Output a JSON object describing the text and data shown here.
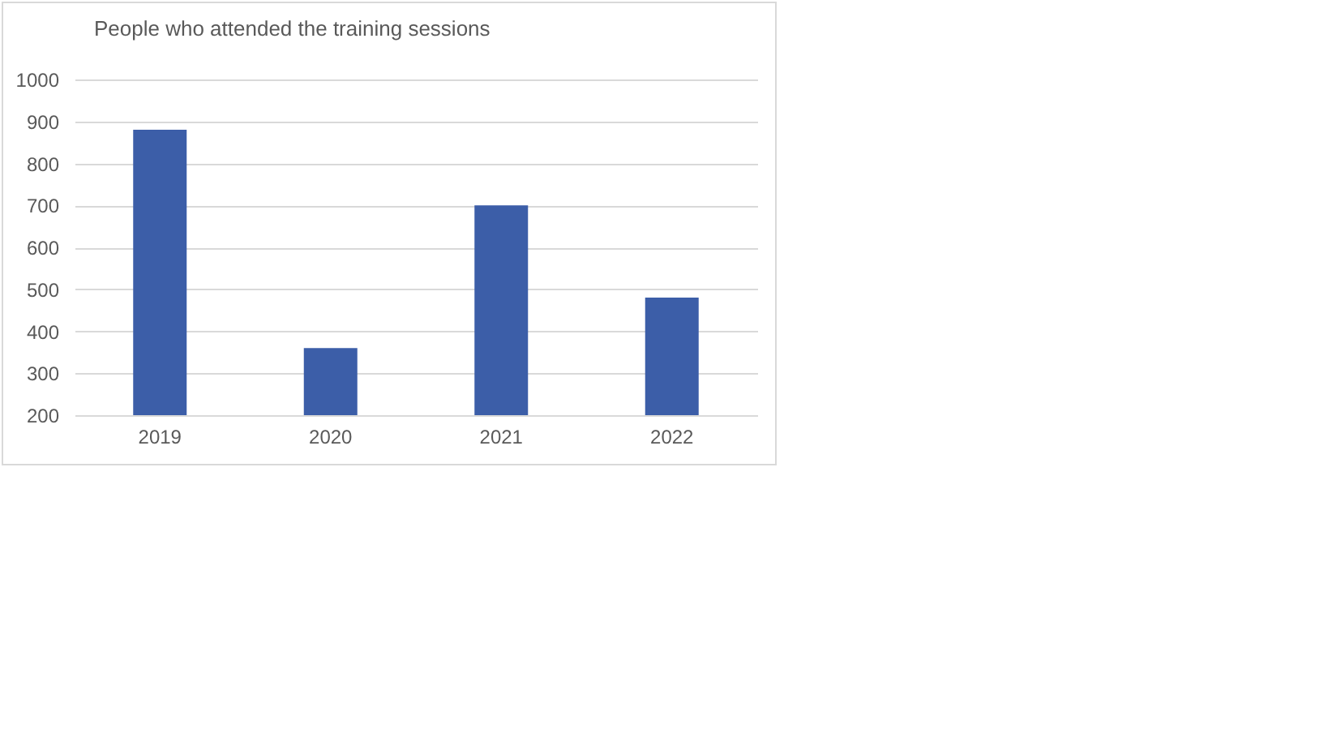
{
  "chart_data": {
    "type": "bar",
    "title": "People who attended the training sessions",
    "categories": [
      "2019",
      "2020",
      "2021",
      "2022"
    ],
    "series": [
      {
        "color": "#3c5ea8",
        "values": [
          880,
          360,
          700,
          480
        ]
      }
    ],
    "ylim": [
      200,
      1000
    ],
    "yticks": [
      200,
      300,
      400,
      500,
      600,
      700,
      800,
      900,
      1000
    ],
    "grid": "y"
  }
}
